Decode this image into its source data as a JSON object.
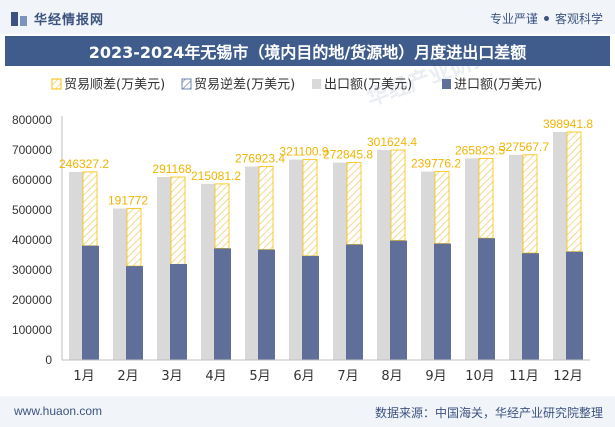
{
  "header": {
    "brand": "华经情报网",
    "tags": [
      "专业严谨",
      "客观科学"
    ]
  },
  "chart_title": "2023-2024年无锡市（境内目的地/货源地）月度进出口差额",
  "legend": [
    {
      "label": "贸易顺差(万美元)",
      "key": "surplus"
    },
    {
      "label": "贸易逆差(万美元)",
      "key": "deficit"
    },
    {
      "label": "出口额(万美元)",
      "key": "export"
    },
    {
      "label": "进口额(万美元)",
      "key": "import"
    }
  ],
  "chart_data": {
    "type": "bar",
    "title": "2023-2024年无锡市（境内目的地/货源地）月度进出口差额",
    "categories": [
      "1月",
      "2月",
      "3月",
      "4月",
      "5月",
      "6月",
      "7月",
      "8月",
      "9月",
      "10月",
      "11月",
      "12月"
    ],
    "series": [
      {
        "name": "出口额(万美元)",
        "values": [
          627000,
          505000,
          610000,
          587000,
          645000,
          668000,
          658000,
          700000,
          628000,
          672000,
          684000,
          760000
        ]
      },
      {
        "name": "进口额(万美元)",
        "values": [
          381000,
          313000,
          320000,
          372000,
          368000,
          347000,
          385000,
          398000,
          388000,
          406000,
          356000,
          361000
        ]
      },
      {
        "name": "贸易顺差(万美元)",
        "values": [
          246327.2,
          191772,
          291168,
          215081.2,
          276923.4,
          321100.9,
          272845.8,
          301624.4,
          239776.2,
          265823.5,
          327567.7,
          398941.8
        ]
      },
      {
        "name": "贸易逆差(万美元)",
        "values": [
          0,
          0,
          0,
          0,
          0,
          0,
          0,
          0,
          0,
          0,
          0,
          0
        ]
      }
    ],
    "data_labels": [
      "246327.2",
      "191772",
      "291168",
      "215081.2",
      "276923.4",
      "321100.9",
      "272845.8",
      "301624.4",
      "239776.2",
      "265823.5",
      "327567.7",
      "398941.8"
    ],
    "ylim": [
      0,
      800000
    ],
    "yticks": [
      0,
      100000,
      200000,
      300000,
      400000,
      500000,
      600000,
      700000,
      800000
    ],
    "grid": false,
    "legend_position": "top"
  },
  "watermark": "华经产业研究院",
  "colors": {
    "export": "#d9d9d9",
    "import": "#5f6f99",
    "surplus": "#f5c000",
    "label": "#f0b400",
    "title_bg": "#3f5c8c"
  },
  "footer": {
    "url": "www.huaon.com",
    "source": "数据来源：中国海关，华经产业研究院整理"
  }
}
